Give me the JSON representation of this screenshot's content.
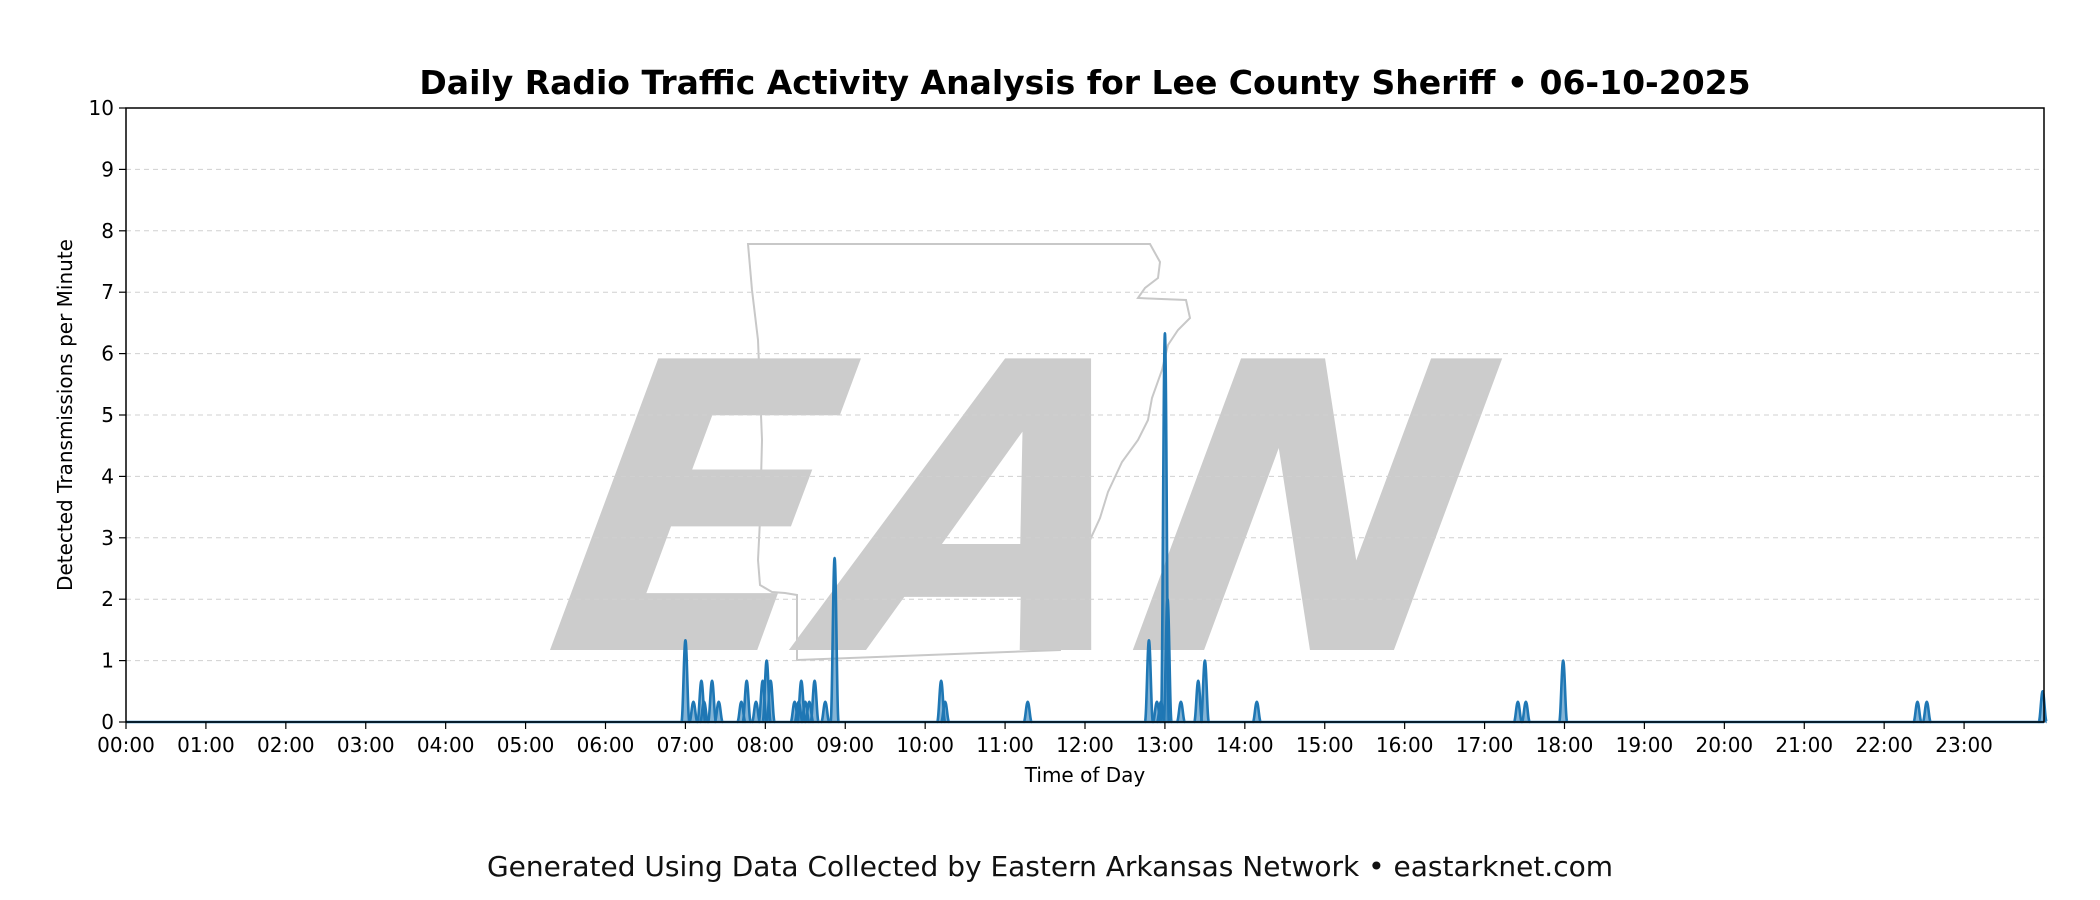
{
  "chart_data": {
    "type": "line",
    "title": "Daily Radio Traffic Activity Analysis for Lee County Sheriff • 06-10-2025",
    "xlabel": "Time of Day",
    "ylabel": "Detected Transmissions per Minute",
    "ylim": [
      0,
      10
    ],
    "yticks": [
      "0",
      "1",
      "2",
      "3",
      "4",
      "5",
      "6",
      "7",
      "8",
      "9",
      "10"
    ],
    "xlim": [
      "00:00",
      "24:00"
    ],
    "xticks": [
      "00:00",
      "01:00",
      "02:00",
      "03:00",
      "04:00",
      "05:00",
      "06:00",
      "07:00",
      "08:00",
      "09:00",
      "10:00",
      "11:00",
      "12:00",
      "13:00",
      "14:00",
      "15:00",
      "16:00",
      "17:00",
      "18:00",
      "19:00",
      "20:00",
      "21:00",
      "22:00",
      "23:00"
    ],
    "grid": "horizontal dashed",
    "series": [
      {
        "type": "area",
        "color": "#1f77b4",
        "points": [
          {
            "x": "07:00",
            "y": 1.33
          },
          {
            "x": "07:06",
            "y": 0.33
          },
          {
            "x": "07:12",
            "y": 0.67
          },
          {
            "x": "07:14",
            "y": 0.33
          },
          {
            "x": "07:20",
            "y": 0.67
          },
          {
            "x": "07:25",
            "y": 0.33
          },
          {
            "x": "07:42",
            "y": 0.33
          },
          {
            "x": "07:46",
            "y": 0.67
          },
          {
            "x": "07:53",
            "y": 0.33
          },
          {
            "x": "07:58",
            "y": 0.67
          },
          {
            "x": "08:01",
            "y": 1.0
          },
          {
            "x": "08:04",
            "y": 0.67
          },
          {
            "x": "08:22",
            "y": 0.33
          },
          {
            "x": "08:25",
            "y": 0.33
          },
          {
            "x": "08:27",
            "y": 0.67
          },
          {
            "x": "08:30",
            "y": 0.33
          },
          {
            "x": "08:33",
            "y": 0.33
          },
          {
            "x": "08:37",
            "y": 0.67
          },
          {
            "x": "08:45",
            "y": 0.33
          },
          {
            "x": "08:52",
            "y": 2.67
          },
          {
            "x": "10:12",
            "y": 0.67
          },
          {
            "x": "10:15",
            "y": 0.33
          },
          {
            "x": "11:17",
            "y": 0.33
          },
          {
            "x": "12:48",
            "y": 1.33
          },
          {
            "x": "12:54",
            "y": 0.33
          },
          {
            "x": "12:57",
            "y": 0.33
          },
          {
            "x": "13:00",
            "y": 6.33
          },
          {
            "x": "13:02",
            "y": 2.0
          },
          {
            "x": "13:12",
            "y": 0.33
          },
          {
            "x": "13:25",
            "y": 0.67
          },
          {
            "x": "13:30",
            "y": 1.0
          },
          {
            "x": "14:09",
            "y": 0.33
          },
          {
            "x": "17:25",
            "y": 0.33
          },
          {
            "x": "17:31",
            "y": 0.33
          },
          {
            "x": "17:59",
            "y": 1.0
          },
          {
            "x": "22:25",
            "y": 0.33
          },
          {
            "x": "22:32",
            "y": 0.33
          },
          {
            "x": "23:59",
            "y": 0.5
          }
        ]
      }
    ]
  },
  "footer": {
    "text": "Generated Using Data Collected by Eastern Arkansas Network • eastarknet.com"
  },
  "watermark": {
    "text": "EAN",
    "color": "#cccccc"
  }
}
